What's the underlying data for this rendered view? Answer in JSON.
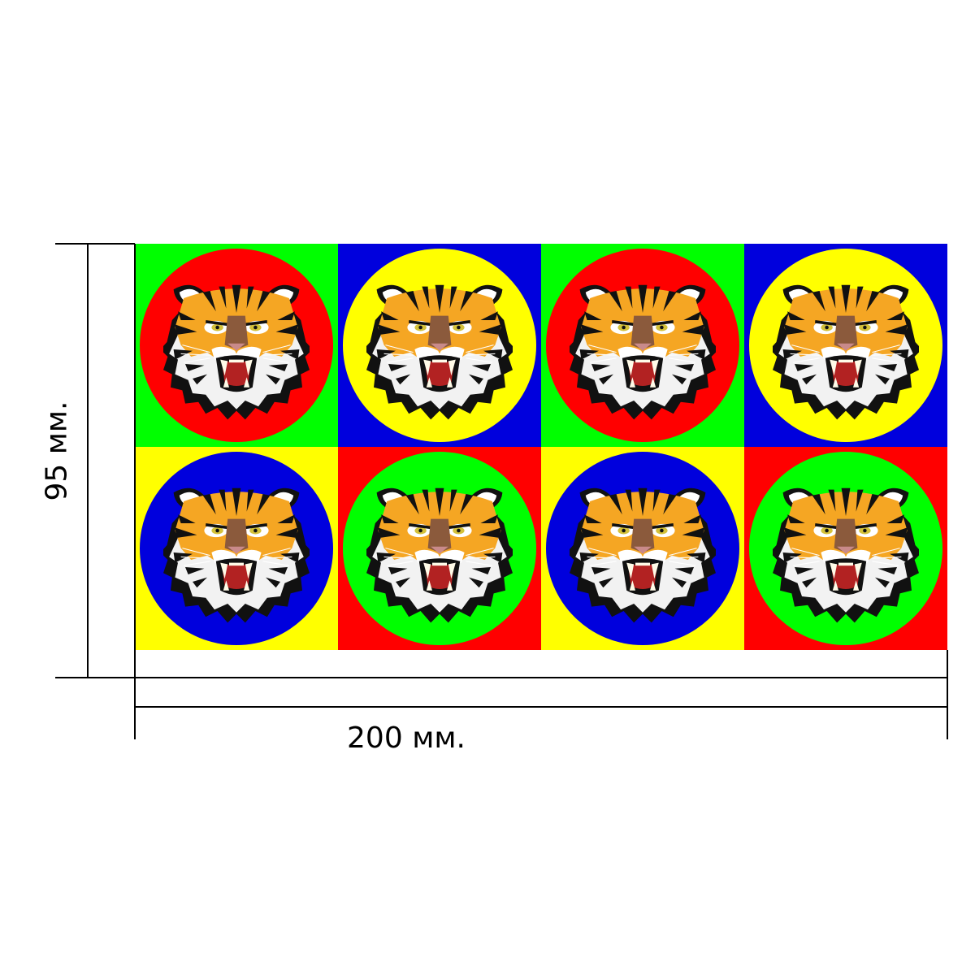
{
  "dimensions": {
    "width_label": "200 мм.",
    "height_label": "95 мм."
  },
  "sheet": {
    "rows": 2,
    "columns": 4,
    "tiles": [
      {
        "background": "#00ff00",
        "circle": "#ff0000"
      },
      {
        "background": "#0000dd",
        "circle": "#ffff00"
      },
      {
        "background": "#00ff00",
        "circle": "#ff0000"
      },
      {
        "background": "#0000dd",
        "circle": "#ffff00"
      },
      {
        "background": "#ffff00",
        "circle": "#0000dd"
      },
      {
        "background": "#ff0000",
        "circle": "#00ff00"
      },
      {
        "background": "#ffff00",
        "circle": "#0000dd"
      },
      {
        "background": "#ff0000",
        "circle": "#00ff00"
      }
    ],
    "motif_icon": "tiger-head-icon"
  },
  "colors": {
    "line": "#000000",
    "fur_orange": "#f5a623",
    "fur_dark_orange": "#e07b10",
    "fur_white": "#ffffff",
    "stripe": "#111111",
    "nose": "#8b5a3c",
    "mouth": "#b22222",
    "teeth": "#fffbe8"
  }
}
